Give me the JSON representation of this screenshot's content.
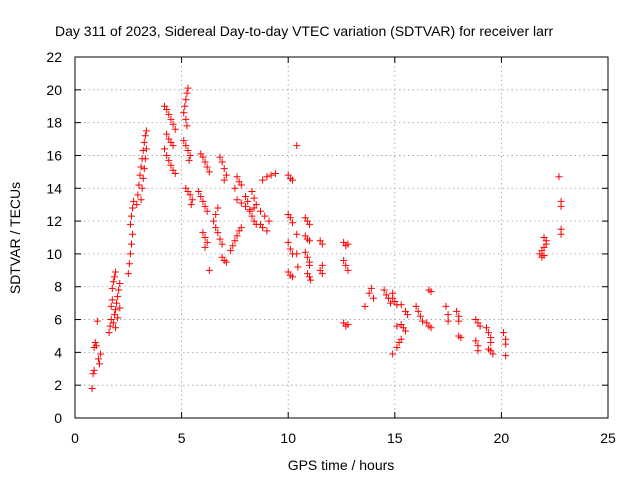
{
  "chart_data": {
    "type": "scatter",
    "title": "Day 311 of 2023, Sidereal Day-to-day VTEC variation (SDTVAR) for receiver larr",
    "xlabel": "GPS time / hours",
    "ylabel": "SDTVAR / TECUs",
    "xlim": [
      0,
      25
    ],
    "ylim": [
      0,
      22
    ],
    "xticks": [
      "0",
      "5",
      "10",
      "15",
      "20",
      "25"
    ],
    "yticks": [
      "0",
      "2",
      "4",
      "6",
      "8",
      "10",
      "12",
      "14",
      "16",
      "18",
      "20",
      "22"
    ],
    "grid": true,
    "marker": "+",
    "color": "#ff0000",
    "series": [
      {
        "name": "SDTVAR",
        "points": [
          [
            0.8,
            1.8
          ],
          [
            0.85,
            2.7
          ],
          [
            0.9,
            2.9
          ],
          [
            0.9,
            4.3
          ],
          [
            0.95,
            4.6
          ],
          [
            1.0,
            4.4
          ],
          [
            1.05,
            5.9
          ],
          [
            1.1,
            3.6
          ],
          [
            1.15,
            3.3
          ],
          [
            1.2,
            3.9
          ],
          [
            1.6,
            5.2
          ],
          [
            1.65,
            5.6
          ],
          [
            1.7,
            6.0
          ],
          [
            1.7,
            6.8
          ],
          [
            1.75,
            7.2
          ],
          [
            1.75,
            7.9
          ],
          [
            1.8,
            8.3
          ],
          [
            1.85,
            8.6
          ],
          [
            1.9,
            8.9
          ],
          [
            1.8,
            5.8
          ],
          [
            1.85,
            6.3
          ],
          [
            1.9,
            6.6
          ],
          [
            1.95,
            7.0
          ],
          [
            2.0,
            7.4
          ],
          [
            2.05,
            7.8
          ],
          [
            2.1,
            8.2
          ],
          [
            1.9,
            5.5
          ],
          [
            2.0,
            6.1
          ],
          [
            2.1,
            6.7
          ],
          [
            2.5,
            8.8
          ],
          [
            2.55,
            9.4
          ],
          [
            2.6,
            10.0
          ],
          [
            2.65,
            10.6
          ],
          [
            2.7,
            11.2
          ],
          [
            2.6,
            11.8
          ],
          [
            2.65,
            12.3
          ],
          [
            2.7,
            12.8
          ],
          [
            2.75,
            13.2
          ],
          [
            2.9,
            13.0
          ],
          [
            2.95,
            13.6
          ],
          [
            3.0,
            14.2
          ],
          [
            3.05,
            14.8
          ],
          [
            3.1,
            15.3
          ],
          [
            3.15,
            15.8
          ],
          [
            3.2,
            16.3
          ],
          [
            3.25,
            16.8
          ],
          [
            3.3,
            17.2
          ],
          [
            3.35,
            17.5
          ],
          [
            3.1,
            13.3
          ],
          [
            3.15,
            14.0
          ],
          [
            3.2,
            14.6
          ],
          [
            3.25,
            15.2
          ],
          [
            3.3,
            15.8
          ],
          [
            3.35,
            16.4
          ],
          [
            4.2,
            19.0
          ],
          [
            4.3,
            18.8
          ],
          [
            4.4,
            18.5
          ],
          [
            4.5,
            18.2
          ],
          [
            4.6,
            17.9
          ],
          [
            4.7,
            17.6
          ],
          [
            4.2,
            16.4
          ],
          [
            4.3,
            16.0
          ],
          [
            4.4,
            15.7
          ],
          [
            4.5,
            15.4
          ],
          [
            4.6,
            15.1
          ],
          [
            4.7,
            14.9
          ],
          [
            4.3,
            17.3
          ],
          [
            4.4,
            17.0
          ],
          [
            4.5,
            16.8
          ],
          [
            4.6,
            16.6
          ],
          [
            5.1,
            18.6
          ],
          [
            5.15,
            19.0
          ],
          [
            5.2,
            19.4
          ],
          [
            5.25,
            19.8
          ],
          [
            5.3,
            20.1
          ],
          [
            5.2,
            18.2
          ],
          [
            5.25,
            17.8
          ],
          [
            5.1,
            16.9
          ],
          [
            5.2,
            16.6
          ],
          [
            5.3,
            16.3
          ],
          [
            5.4,
            16.0
          ],
          [
            5.35,
            15.7
          ],
          [
            5.2,
            14.0
          ],
          [
            5.3,
            13.8
          ],
          [
            5.4,
            13.6
          ],
          [
            5.5,
            13.3
          ],
          [
            5.45,
            13.0
          ],
          [
            5.9,
            16.1
          ],
          [
            6.0,
            15.9
          ],
          [
            6.1,
            15.6
          ],
          [
            6.2,
            15.3
          ],
          [
            6.3,
            15.0
          ],
          [
            5.8,
            13.8
          ],
          [
            5.9,
            13.5
          ],
          [
            6.0,
            13.2
          ],
          [
            6.1,
            12.9
          ],
          [
            6.2,
            12.6
          ],
          [
            6.0,
            11.3
          ],
          [
            6.1,
            11.0
          ],
          [
            6.2,
            10.7
          ],
          [
            6.1,
            10.4
          ],
          [
            6.3,
            9.0
          ],
          [
            6.6,
            11.6
          ],
          [
            6.7,
            11.3
          ],
          [
            6.8,
            10.9
          ],
          [
            6.9,
            10.6
          ],
          [
            6.5,
            12.0
          ],
          [
            6.6,
            12.4
          ],
          [
            6.7,
            12.8
          ],
          [
            6.8,
            15.9
          ],
          [
            6.9,
            15.6
          ],
          [
            7.0,
            15.2
          ],
          [
            7.1,
            14.8
          ],
          [
            7.0,
            14.5
          ],
          [
            6.9,
            9.8
          ],
          [
            7.0,
            9.6
          ],
          [
            7.1,
            9.5
          ],
          [
            7.3,
            10.2
          ],
          [
            7.4,
            10.5
          ],
          [
            7.5,
            10.8
          ],
          [
            7.6,
            11.1
          ],
          [
            7.7,
            11.4
          ],
          [
            7.8,
            11.6
          ],
          [
            7.6,
            14.7
          ],
          [
            7.7,
            14.4
          ],
          [
            7.8,
            14.2
          ],
          [
            7.5,
            14.0
          ],
          [
            7.6,
            13.3
          ],
          [
            7.8,
            13.1
          ],
          [
            8.0,
            12.9
          ],
          [
            8.2,
            12.7
          ],
          [
            8.4,
            12.8
          ],
          [
            8.0,
            13.5
          ],
          [
            8.1,
            13.2
          ],
          [
            8.2,
            12.6
          ],
          [
            8.3,
            12.3
          ],
          [
            8.4,
            12.0
          ],
          [
            8.5,
            11.8
          ],
          [
            8.3,
            13.8
          ],
          [
            8.4,
            13.4
          ],
          [
            8.5,
            13.0
          ],
          [
            8.7,
            12.6
          ],
          [
            8.9,
            12.3
          ],
          [
            9.1,
            12.0
          ],
          [
            8.7,
            11.8
          ],
          [
            8.8,
            11.6
          ],
          [
            9.0,
            11.4
          ],
          [
            8.8,
            14.5
          ],
          [
            9.0,
            14.7
          ],
          [
            9.2,
            14.8
          ],
          [
            9.4,
            14.9
          ],
          [
            10.0,
            14.8
          ],
          [
            10.1,
            14.6
          ],
          [
            10.2,
            14.5
          ],
          [
            10.0,
            12.4
          ],
          [
            10.1,
            12.2
          ],
          [
            10.2,
            11.9
          ],
          [
            10.0,
            10.7
          ],
          [
            10.1,
            10.3
          ],
          [
            10.2,
            10.0
          ],
          [
            10.0,
            8.9
          ],
          [
            10.1,
            8.7
          ],
          [
            10.2,
            8.6
          ],
          [
            10.4,
            16.6
          ],
          [
            10.4,
            11.2
          ],
          [
            10.4,
            10.0
          ],
          [
            10.45,
            9.2
          ],
          [
            10.8,
            12.2
          ],
          [
            10.9,
            12.0
          ],
          [
            11.0,
            11.8
          ],
          [
            10.8,
            11.1
          ],
          [
            10.9,
            10.9
          ],
          [
            11.0,
            10.8
          ],
          [
            10.8,
            10.1
          ],
          [
            10.9,
            9.8
          ],
          [
            11.0,
            9.5
          ],
          [
            11.0,
            9.3
          ],
          [
            10.9,
            8.8
          ],
          [
            11.0,
            8.6
          ],
          [
            11.05,
            8.4
          ],
          [
            11.5,
            10.8
          ],
          [
            11.6,
            10.6
          ],
          [
            11.6,
            9.3
          ],
          [
            11.5,
            9.0
          ],
          [
            11.6,
            8.8
          ],
          [
            12.6,
            10.7
          ],
          [
            12.7,
            10.5
          ],
          [
            12.8,
            10.6
          ],
          [
            12.6,
            9.6
          ],
          [
            12.7,
            9.3
          ],
          [
            12.8,
            9.0
          ],
          [
            12.6,
            5.8
          ],
          [
            12.7,
            5.6
          ],
          [
            12.8,
            5.7
          ],
          [
            13.6,
            6.8
          ],
          [
            13.8,
            7.6
          ],
          [
            13.9,
            7.9
          ],
          [
            14.0,
            7.3
          ],
          [
            14.5,
            7.8
          ],
          [
            14.6,
            7.5
          ],
          [
            14.7,
            7.3
          ],
          [
            14.8,
            7.0
          ],
          [
            14.9,
            7.6
          ],
          [
            14.9,
            7.3
          ],
          [
            15.0,
            7.1
          ],
          [
            15.1,
            6.9
          ],
          [
            14.9,
            3.9
          ],
          [
            15.1,
            4.3
          ],
          [
            15.2,
            4.6
          ],
          [
            15.3,
            4.8
          ],
          [
            15.1,
            5.6
          ],
          [
            15.3,
            5.7
          ],
          [
            15.4,
            5.5
          ],
          [
            15.5,
            5.3
          ],
          [
            15.3,
            6.9
          ],
          [
            15.5,
            6.5
          ],
          [
            15.6,
            6.3
          ],
          [
            16.0,
            6.8
          ],
          [
            16.1,
            6.5
          ],
          [
            16.2,
            6.2
          ],
          [
            16.3,
            5.9
          ],
          [
            16.5,
            5.8
          ],
          [
            16.6,
            5.6
          ],
          [
            16.7,
            5.5
          ],
          [
            16.6,
            7.8
          ],
          [
            16.7,
            7.7
          ],
          [
            17.4,
            6.8
          ],
          [
            17.5,
            6.3
          ],
          [
            17.5,
            5.9
          ],
          [
            17.9,
            6.5
          ],
          [
            18.0,
            6.2
          ],
          [
            18.0,
            5.9
          ],
          [
            18.0,
            5.0
          ],
          [
            18.1,
            4.9
          ],
          [
            18.8,
            6.0
          ],
          [
            18.9,
            5.8
          ],
          [
            19.0,
            5.6
          ],
          [
            18.8,
            4.7
          ],
          [
            18.9,
            4.4
          ],
          [
            18.9,
            4.1
          ],
          [
            19.3,
            5.5
          ],
          [
            19.4,
            5.2
          ],
          [
            19.5,
            4.9
          ],
          [
            19.5,
            4.6
          ],
          [
            19.4,
            4.2
          ],
          [
            19.5,
            4.1
          ],
          [
            19.6,
            3.9
          ],
          [
            20.1,
            5.2
          ],
          [
            20.2,
            4.8
          ],
          [
            20.2,
            4.5
          ],
          [
            20.2,
            3.8
          ],
          [
            21.8,
            10.0
          ],
          [
            21.9,
            10.2
          ],
          [
            22.0,
            10.4
          ],
          [
            22.1,
            10.6
          ],
          [
            21.9,
            9.8
          ],
          [
            22.0,
            9.9
          ],
          [
            22.1,
            10.8
          ],
          [
            22.0,
            11.0
          ],
          [
            22.7,
            14.7
          ],
          [
            22.8,
            13.2
          ],
          [
            22.8,
            12.9
          ],
          [
            22.8,
            11.5
          ],
          [
            22.8,
            11.2
          ]
        ]
      }
    ]
  }
}
